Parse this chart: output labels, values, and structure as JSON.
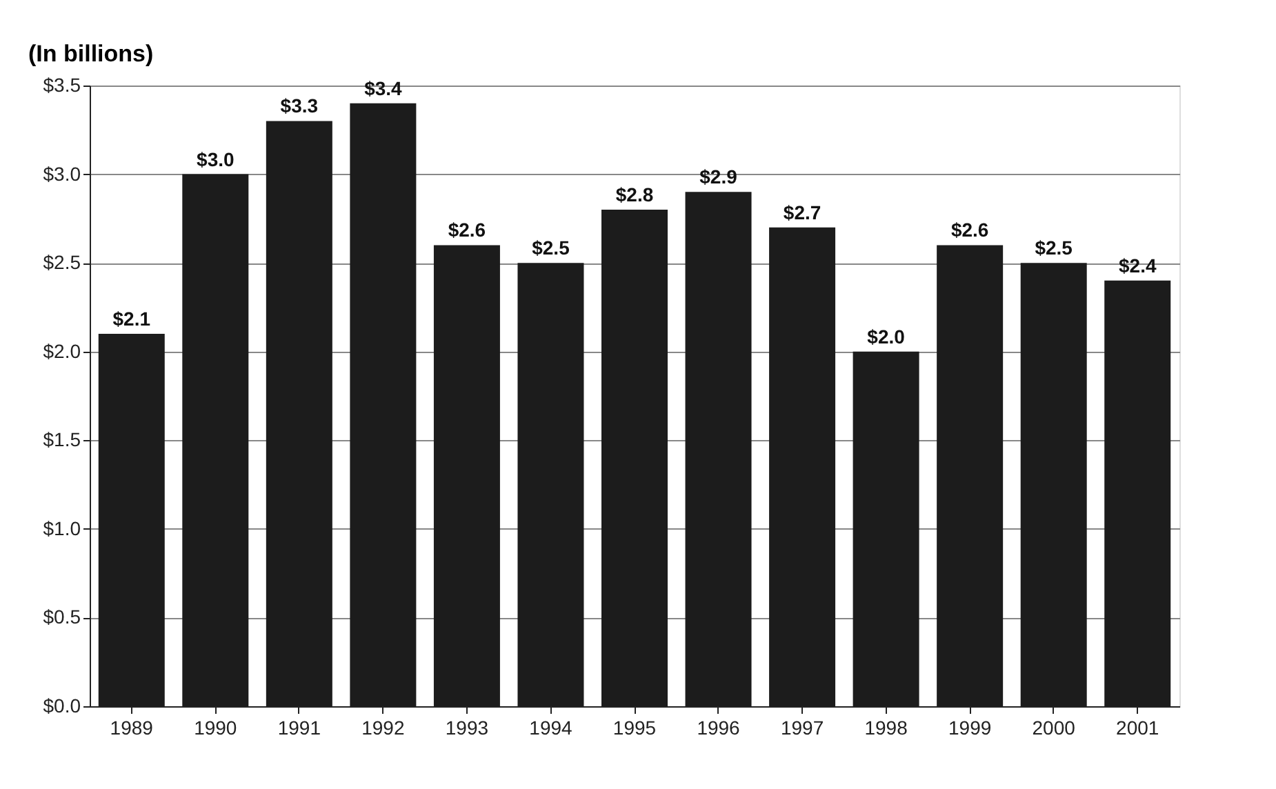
{
  "chart_data": {
    "type": "bar",
    "ylabel": "(In billions)",
    "categories": [
      "1989",
      "1990",
      "1991",
      "1992",
      "1993",
      "1994",
      "1995",
      "1996",
      "1997",
      "1998",
      "1999",
      "2000",
      "2001"
    ],
    "values": [
      2.1,
      3.0,
      3.3,
      3.4,
      2.6,
      2.5,
      2.8,
      2.9,
      2.7,
      2.0,
      2.6,
      2.5,
      2.4
    ],
    "value_labels": [
      "$2.1",
      "$3.0",
      "$3.3",
      "$3.4",
      "$2.6",
      "$2.5",
      "$2.8",
      "$2.9",
      "$2.7",
      "$2.0",
      "$2.6",
      "$2.5",
      "$2.4"
    ],
    "color": "#1c1c1c",
    "ylim": [
      0,
      3.5
    ],
    "yticks": [
      {
        "value": 0,
        "label": "$0.0"
      },
      {
        "value": 0.5,
        "label": "$0.5"
      },
      {
        "value": 1.0,
        "label": "$1.0"
      },
      {
        "value": 1.5,
        "label": "$1.5"
      },
      {
        "value": 2.0,
        "label": "$2.0"
      },
      {
        "value": 2.5,
        "label": "$2.5"
      },
      {
        "value": 3.0,
        "label": "$3.0"
      },
      {
        "value": 3.5,
        "label": "$3.5"
      }
    ],
    "grid": "y"
  }
}
